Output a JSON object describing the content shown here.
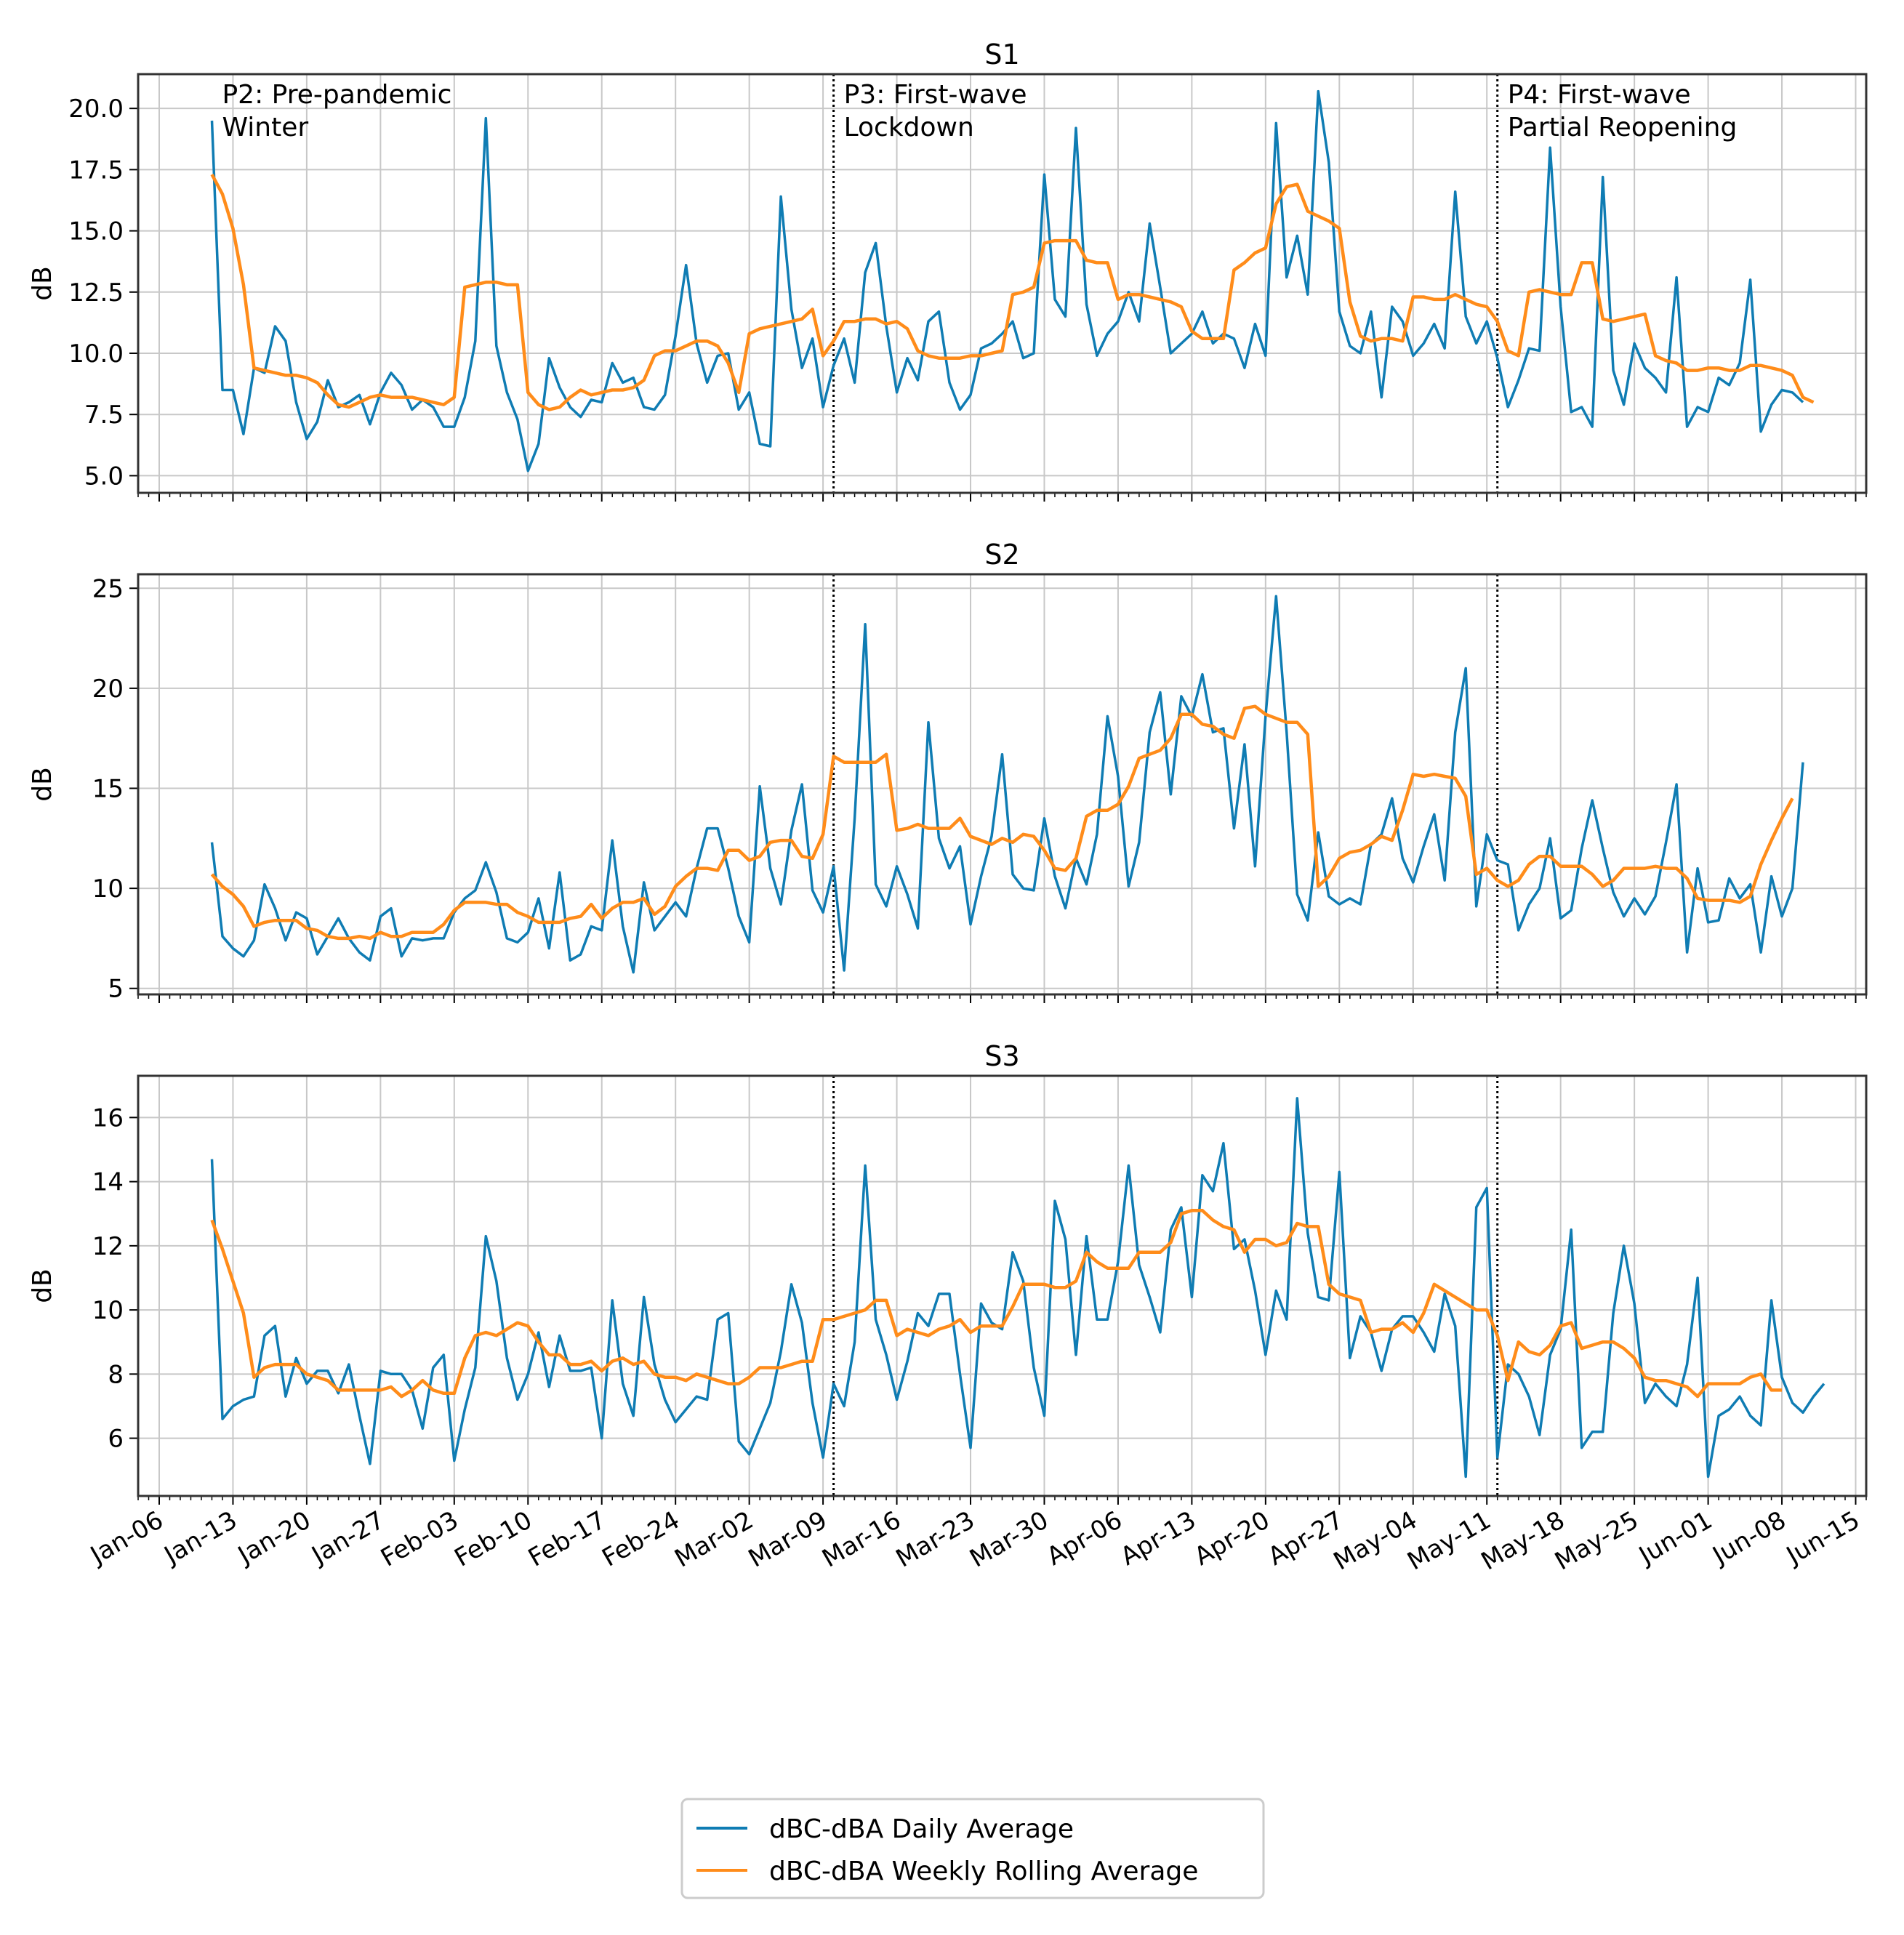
{
  "chart_data": {
    "type": "line",
    "legend": {
      "placement": "bottom-center",
      "entries": [
        "dBC-dBA Daily Average",
        "dBC-dBA Weekly Rolling Average"
      ]
    },
    "colors": {
      "daily": "#0f7cb3",
      "weekly": "#ff8c1a",
      "grid": "#c8c8c8",
      "period_line": "#000000"
    },
    "x": {
      "start": "Jan-11",
      "day_offsets_from_Jan06": "5..157",
      "tick_labels": [
        "Jan-06",
        "Jan-13",
        "Jan-20",
        "Jan-27",
        "Feb-03",
        "Feb-10",
        "Feb-17",
        "Feb-24",
        "Mar-02",
        "Mar-09",
        "Mar-16",
        "Mar-23",
        "Mar-30",
        "Apr-06",
        "Apr-13",
        "Apr-20",
        "Apr-27",
        "May-04",
        "May-11",
        "May-18",
        "May-25",
        "Jun-01",
        "Jun-08",
        "Jun-15"
      ],
      "xlim_days": [
        -2,
        162
      ]
    },
    "period_dividers": [
      {
        "label": "P2: Pre-pandemic\nWinter",
        "day": 5
      },
      {
        "label": "P3: First-wave\nLockdown",
        "day": 64
      },
      {
        "label": "P4: First-wave\nPartial Reopening",
        "day": 127
      }
    ],
    "panels": [
      {
        "title": "S1",
        "ylabel": "dB",
        "ylim": [
          4.3,
          21.4
        ],
        "yticks": [
          5.0,
          7.5,
          10.0,
          12.5,
          15.0,
          17.5,
          20.0
        ],
        "ytick_labels": [
          "5.0",
          "7.5",
          "10.0",
          "12.5",
          "15.0",
          "17.5",
          "20.0"
        ],
        "show_period_labels": true,
        "daily": [
          19.5,
          8.5,
          8.5,
          6.7,
          9.4,
          9.2,
          11.1,
          10.5,
          8.0,
          6.5,
          7.2,
          8.9,
          7.8,
          8.0,
          8.3,
          7.1,
          8.4,
          9.2,
          8.7,
          7.7,
          8.1,
          7.8,
          7.0,
          7.0,
          8.2,
          10.5,
          19.6,
          10.3,
          8.4,
          7.3,
          5.2,
          6.3,
          9.8,
          8.6,
          7.8,
          7.4,
          8.1,
          8.0,
          9.6,
          8.8,
          9.0,
          7.8,
          7.7,
          8.3,
          10.7,
          13.6,
          10.4,
          8.8,
          9.9,
          10.0,
          7.7,
          8.4,
          6.3,
          6.2,
          16.4,
          11.8,
          9.4,
          10.6,
          7.8,
          9.5,
          10.6,
          8.8,
          13.3,
          14.5,
          11.1,
          8.4,
          9.8,
          8.9,
          11.3,
          11.7,
          8.8,
          7.7,
          8.3,
          10.2,
          10.4,
          10.8,
          11.3,
          9.8,
          10.0,
          17.3,
          12.2,
          11.5,
          19.2,
          12.0,
          9.9,
          10.8,
          11.3,
          12.5,
          11.3,
          15.3,
          12.7,
          10.0,
          10.4,
          10.8,
          11.7,
          10.4,
          10.8,
          10.6,
          9.4,
          11.2,
          9.9,
          19.4,
          13.1,
          14.8,
          12.4,
          20.7,
          17.8,
          11.7,
          10.3,
          10.0,
          11.7,
          8.2,
          11.9,
          11.3,
          9.9,
          10.4,
          11.2,
          10.2,
          16.6,
          11.5,
          10.4,
          11.3,
          9.8,
          7.8,
          8.9,
          10.2,
          10.1,
          18.4,
          11.9,
          7.6,
          7.8,
          7.0,
          17.2,
          9.3,
          7.9,
          10.4,
          9.4,
          9.0,
          8.4,
          13.1,
          7.0,
          7.8,
          7.6,
          9.0,
          8.7,
          9.6,
          13.0,
          6.8,
          7.9,
          8.5,
          8.4,
          8.0
        ],
        "weekly": [
          17.3,
          16.5,
          15.1,
          12.8,
          9.4,
          9.3,
          9.2,
          9.1,
          9.1,
          9.0,
          8.8,
          8.3,
          7.9,
          7.8,
          8.0,
          8.2,
          8.3,
          8.2,
          8.2,
          8.2,
          8.1,
          8.0,
          7.9,
          8.2,
          12.7,
          12.8,
          12.9,
          12.9,
          12.8,
          12.8,
          8.4,
          7.9,
          7.7,
          7.8,
          8.2,
          8.5,
          8.3,
          8.4,
          8.5,
          8.5,
          8.6,
          8.9,
          9.9,
          10.1,
          10.1,
          10.3,
          10.5,
          10.5,
          10.3,
          9.6,
          8.4,
          10.8,
          11.0,
          11.1,
          11.2,
          11.3,
          11.4,
          11.8,
          9.9,
          10.5,
          11.3,
          11.3,
          11.4,
          11.4,
          11.2,
          11.3,
          11.0,
          10.1,
          9.9,
          9.8,
          9.8,
          9.8,
          9.9,
          9.9,
          10.0,
          10.1,
          12.4,
          12.5,
          12.7,
          14.5,
          14.6,
          14.6,
          14.6,
          13.8,
          13.7,
          13.7,
          12.2,
          12.4,
          12.4,
          12.3,
          12.2,
          12.1,
          11.9,
          10.9,
          10.6,
          10.6,
          10.6,
          13.4,
          13.7,
          14.1,
          14.3,
          16.1,
          16.8,
          16.9,
          15.8,
          15.6,
          15.4,
          15.1,
          12.1,
          10.7,
          10.5,
          10.6,
          10.6,
          10.5,
          12.3,
          12.3,
          12.2,
          12.2,
          12.4,
          12.2,
          12.0,
          11.9,
          11.3,
          10.1,
          9.9,
          12.5,
          12.6,
          12.5,
          12.4,
          12.4,
          13.7,
          13.7,
          11.4,
          11.3,
          11.4,
          11.5,
          11.6,
          9.9,
          9.7,
          9.6,
          9.3,
          9.3,
          9.4,
          9.4,
          9.3,
          9.3,
          9.5,
          9.5,
          9.4,
          9.3,
          9.1,
          8.2,
          8.0
        ]
      },
      {
        "title": "S2",
        "ylabel": "dB",
        "ylim": [
          4.7,
          25.7
        ],
        "yticks": [
          5,
          10,
          15,
          20,
          25
        ],
        "ytick_labels": [
          "5",
          "10",
          "15",
          "20",
          "25"
        ],
        "show_period_labels": false,
        "daily": [
          12.3,
          7.6,
          7.0,
          6.6,
          7.4,
          10.2,
          9.0,
          7.4,
          8.8,
          8.5,
          6.7,
          7.6,
          8.5,
          7.5,
          6.8,
          6.4,
          8.6,
          9.0,
          6.6,
          7.5,
          7.4,
          7.5,
          7.5,
          8.8,
          9.5,
          9.9,
          11.3,
          9.8,
          7.5,
          7.3,
          7.8,
          9.5,
          7.0,
          10.8,
          6.4,
          6.7,
          8.1,
          7.9,
          12.4,
          8.1,
          5.8,
          10.3,
          7.9,
          8.6,
          9.3,
          8.6,
          11.0,
          13.0,
          13.0,
          11.0,
          8.6,
          7.3,
          15.1,
          11.0,
          9.2,
          12.9,
          15.2,
          9.9,
          8.8,
          11.1,
          5.9,
          13.5,
          23.2,
          10.2,
          9.1,
          11.1,
          9.7,
          8.0,
          18.3,
          12.5,
          11.0,
          12.1,
          8.2,
          10.6,
          12.6,
          16.7,
          10.7,
          10.0,
          9.9,
          13.5,
          10.6,
          9.0,
          11.5,
          10.2,
          12.7,
          18.6,
          15.6,
          10.1,
          12.3,
          17.8,
          19.8,
          14.7,
          19.6,
          18.6,
          20.7,
          17.8,
          18.0,
          13.0,
          17.2,
          11.1,
          18.6,
          24.6,
          17.8,
          9.7,
          8.4,
          12.8,
          9.6,
          9.2,
          9.5,
          9.2,
          12.2,
          12.7,
          14.5,
          11.5,
          10.3,
          12.1,
          13.7,
          10.4,
          17.8,
          21.0,
          9.1,
          12.7,
          11.4,
          11.2,
          7.9,
          9.2,
          10.0,
          12.5,
          8.5,
          8.9,
          12.0,
          14.4,
          12.0,
          9.8,
          8.6,
          9.5,
          8.7,
          9.6,
          12.3,
          15.2,
          6.8,
          11.0,
          8.3,
          8.4,
          10.5,
          9.5,
          10.2,
          6.8,
          10.6,
          8.6,
          10.0,
          16.3
        ],
        "weekly": [
          10.7,
          10.1,
          9.7,
          9.1,
          8.1,
          8.3,
          8.4,
          8.4,
          8.4,
          8.0,
          7.9,
          7.6,
          7.5,
          7.5,
          7.6,
          7.5,
          7.8,
          7.6,
          7.6,
          7.8,
          7.8,
          7.8,
          8.2,
          8.9,
          9.3,
          9.3,
          9.3,
          9.2,
          9.2,
          8.8,
          8.6,
          8.3,
          8.3,
          8.3,
          8.5,
          8.6,
          9.2,
          8.5,
          9.0,
          9.3,
          9.3,
          9.5,
          8.7,
          9.1,
          10.1,
          10.6,
          11.0,
          11.0,
          10.9,
          11.9,
          11.9,
          11.4,
          11.6,
          12.3,
          12.4,
          12.4,
          11.6,
          11.5,
          12.7,
          16.6,
          16.3,
          16.3,
          16.3,
          16.3,
          16.7,
          12.9,
          13.0,
          13.2,
          13.0,
          13.0,
          13.0,
          13.5,
          12.6,
          12.4,
          12.2,
          12.5,
          12.3,
          12.7,
          12.6,
          11.9,
          11.0,
          10.9,
          11.5,
          13.6,
          13.9,
          13.9,
          14.2,
          15.1,
          16.5,
          16.7,
          16.9,
          17.5,
          18.7,
          18.7,
          18.2,
          18.1,
          17.7,
          17.5,
          19.0,
          19.1,
          18.7,
          18.5,
          18.3,
          18.3,
          17.7,
          10.1,
          10.6,
          11.5,
          11.8,
          11.9,
          12.2,
          12.6,
          12.4,
          13.9,
          15.7,
          15.6,
          15.7,
          15.6,
          15.5,
          14.6,
          10.7,
          11.0,
          10.4,
          10.1,
          10.4,
          11.2,
          11.6,
          11.6,
          11.1,
          11.1,
          11.1,
          10.7,
          10.1,
          10.4,
          11.0,
          11.0,
          11.0,
          11.1,
          11.0,
          11.0,
          10.5,
          9.5,
          9.4,
          9.4,
          9.4,
          9.3,
          9.6,
          11.2,
          12.4,
          13.5,
          14.5
        ]
      },
      {
        "title": "S3",
        "ylabel": "dB",
        "ylim": [
          4.2,
          17.3
        ],
        "yticks": [
          6,
          8,
          10,
          12,
          14,
          16
        ],
        "ytick_labels": [
          "6",
          "8",
          "10",
          "12",
          "14",
          "16"
        ],
        "show_period_labels": false,
        "daily": [
          14.7,
          6.6,
          7.0,
          7.2,
          7.3,
          9.2,
          9.5,
          7.3,
          8.5,
          7.7,
          8.1,
          8.1,
          7.4,
          8.3,
          6.7,
          5.2,
          8.1,
          8.0,
          8.0,
          7.5,
          6.3,
          8.2,
          8.6,
          5.3,
          6.9,
          8.2,
          12.3,
          10.9,
          8.5,
          7.2,
          8.0,
          9.3,
          7.6,
          9.2,
          8.1,
          8.1,
          8.2,
          6.0,
          10.3,
          7.7,
          6.7,
          10.4,
          8.3,
          7.2,
          6.5,
          6.9,
          7.3,
          7.2,
          9.7,
          9.9,
          5.9,
          5.5,
          6.3,
          7.1,
          8.7,
          10.8,
          9.6,
          7.1,
          5.4,
          7.7,
          7.0,
          9.0,
          14.5,
          9.7,
          8.6,
          7.2,
          8.4,
          9.9,
          9.5,
          10.5,
          10.5,
          8.0,
          5.7,
          10.2,
          9.6,
          9.4,
          11.8,
          10.9,
          8.2,
          6.7,
          13.4,
          12.2,
          8.6,
          12.3,
          9.7,
          9.7,
          11.5,
          14.5,
          11.4,
          10.4,
          9.3,
          12.5,
          13.2,
          10.4,
          14.2,
          13.7,
          15.2,
          11.9,
          12.2,
          10.6,
          8.6,
          10.6,
          9.7,
          16.6,
          12.4,
          10.4,
          10.3,
          14.3,
          8.5,
          9.8,
          9.3,
          8.1,
          9.4,
          9.8,
          9.8,
          9.3,
          8.7,
          10.5,
          9.5,
          4.8,
          13.2,
          13.8,
          5.4,
          8.3,
          8.0,
          7.3,
          6.1,
          8.6,
          9.4,
          12.5,
          5.7,
          6.2,
          6.2,
          9.9,
          12.0,
          10.2,
          7.1,
          7.7,
          7.3,
          7.0,
          8.3,
          11.0,
          4.8,
          6.7,
          6.9,
          7.3,
          6.7,
          6.4,
          10.3,
          7.9,
          7.1,
          6.8,
          7.3,
          7.7
        ],
        "weekly": [
          12.8,
          11.9,
          10.9,
          9.9,
          7.9,
          8.2,
          8.3,
          8.3,
          8.3,
          8.0,
          7.9,
          7.8,
          7.5,
          7.5,
          7.5,
          7.5,
          7.5,
          7.6,
          7.3,
          7.5,
          7.8,
          7.5,
          7.4,
          7.4,
          8.5,
          9.2,
          9.3,
          9.2,
          9.4,
          9.6,
          9.5,
          9.0,
          8.6,
          8.6,
          8.3,
          8.3,
          8.4,
          8.1,
          8.4,
          8.5,
          8.3,
          8.4,
          8.0,
          7.9,
          7.9,
          7.8,
          8.0,
          7.9,
          7.8,
          7.7,
          7.7,
          7.9,
          8.2,
          8.2,
          8.2,
          8.3,
          8.4,
          8.4,
          9.7,
          9.7,
          9.8,
          9.9,
          10.0,
          10.3,
          10.3,
          9.2,
          9.4,
          9.3,
          9.2,
          9.4,
          9.5,
          9.7,
          9.3,
          9.5,
          9.5,
          9.5,
          10.1,
          10.8,
          10.8,
          10.8,
          10.7,
          10.7,
          10.9,
          11.8,
          11.5,
          11.3,
          11.3,
          11.3,
          11.8,
          11.8,
          11.8,
          12.1,
          13.0,
          13.1,
          13.1,
          12.8,
          12.6,
          12.5,
          11.8,
          12.2,
          12.2,
          12.0,
          12.1,
          12.7,
          12.6,
          12.6,
          10.8,
          10.5,
          10.4,
          10.3,
          9.3,
          9.4,
          9.4,
          9.6,
          9.3,
          9.9,
          10.8,
          10.6,
          10.4,
          10.2,
          10.0,
          10.0,
          9.2,
          7.8,
          9.0,
          8.7,
          8.6,
          8.9,
          9.5,
          9.6,
          8.8,
          8.9,
          9.0,
          9.0,
          8.8,
          8.5,
          7.9,
          7.8,
          7.8,
          7.7,
          7.6,
          7.3,
          7.7,
          7.7,
          7.7,
          7.7,
          7.9,
          8.0,
          7.5,
          7.5
        ]
      }
    ]
  }
}
